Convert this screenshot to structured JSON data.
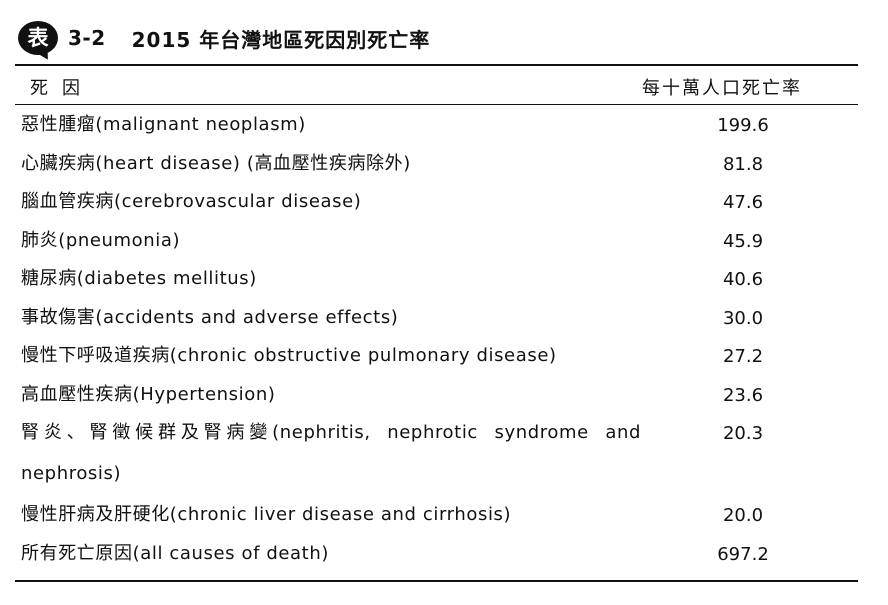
{
  "table": {
    "badge": "表",
    "number": "3-2",
    "title": "2015 年台灣地區死因別死亡率",
    "header": {
      "cause": "死因",
      "rate": "每十萬人口死亡率"
    },
    "rows": [
      {
        "cause": "惡性腫瘤(malignant neoplasm)",
        "rate": "199.6"
      },
      {
        "cause": "心臟疾病(heart disease) (高血壓性疾病除外)",
        "rate": "81.8"
      },
      {
        "cause": "腦血管疾病(cerebrovascular disease)",
        "rate": "47.6"
      },
      {
        "cause": "肺炎(pneumonia)",
        "rate": "45.9"
      },
      {
        "cause": "糖尿病(diabetes mellitus)",
        "rate": "40.6"
      },
      {
        "cause": "事故傷害(accidents and adverse effects)",
        "rate": "30.0"
      },
      {
        "cause": "慢性下呼吸道疾病(chronic obstructive pulmonary disease)",
        "rate": "27.2"
      },
      {
        "cause": "高血壓性疾病(Hypertension)",
        "rate": "23.6"
      },
      {
        "cause": "腎炎、腎徵候群及腎病變(nephritis, nephrotic syndrome and nephrosis)",
        "rate": "20.3"
      },
      {
        "cause": "慢性肝病及肝硬化(chronic liver disease and cirrhosis)",
        "rate": "20.0"
      },
      {
        "cause": "所有死亡原因(all causes of death)",
        "rate": "697.2"
      }
    ]
  }
}
